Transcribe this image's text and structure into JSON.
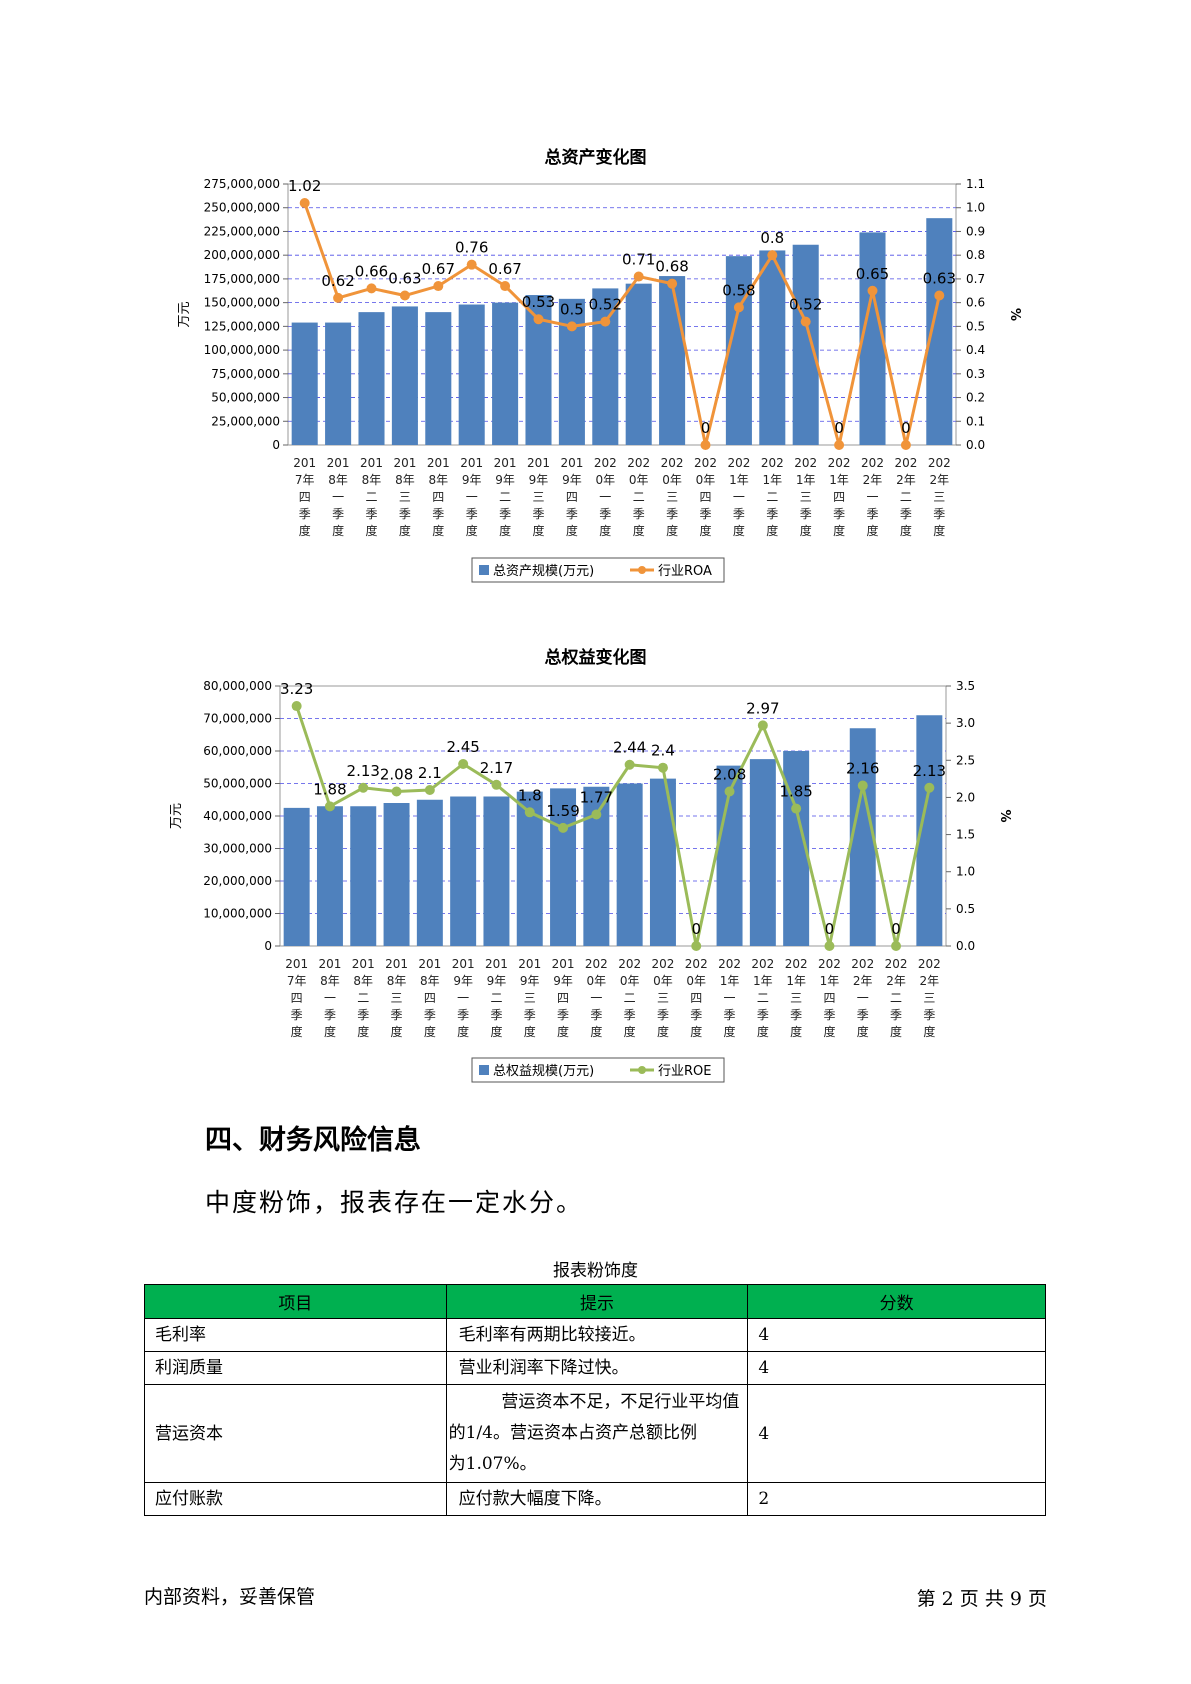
{
  "chart_data": [
    {
      "type": "bar+line",
      "title": "总资产变化图",
      "ylabel": "万元",
      "y2label": "%",
      "ylim": [
        0,
        275000000
      ],
      "y2lim": [
        0,
        1.1
      ],
      "y_ticks": [
        "275,000,000",
        "250,000,000",
        "225,000,000",
        "200,000,000",
        "175,000,000",
        "150,000,000",
        "125,000,000",
        "100,000,000",
        "75,000,000",
        "50,000,000",
        "25,000,000",
        "0"
      ],
      "y2_ticks": [
        "1.1",
        "1.0",
        "0.9",
        "0.8",
        "0.7",
        "0.6",
        "0.5",
        "0.4",
        "0.3",
        "0.2",
        "0.1",
        "0.0"
      ],
      "categories": [
        "2017年四季度",
        "2018年一季度",
        "2018年二季度",
        "2018年三季度",
        "2018年四季度",
        "2019年一季度",
        "2019年二季度",
        "2019年三季度",
        "2019年四季度",
        "2020年一季度",
        "2020年二季度",
        "2020年三季度",
        "2020年四季度",
        "2021年一季度",
        "2021年二季度",
        "2021年三季度",
        "2021年四季度",
        "2022年一季度",
        "2022年二季度",
        "2022年三季度"
      ],
      "series": [
        {
          "name": "总资产规模(万元)",
          "kind": "bar",
          "color": "#4f81bd",
          "values": [
            129000000,
            129000000,
            140000000,
            146000000,
            140000000,
            148000000,
            150000000,
            158000000,
            154000000,
            165000000,
            170000000,
            178000000,
            0,
            199000000,
            205000000,
            211000000,
            0,
            224000000,
            0,
            239000000
          ]
        },
        {
          "name": "行业ROA",
          "kind": "line",
          "color": "#f0943a",
          "values": [
            1.02,
            0.62,
            0.66,
            0.63,
            0.67,
            0.76,
            0.67,
            0.53,
            0.5,
            0.52,
            0.71,
            0.68,
            0,
            0.58,
            0.8,
            0.52,
            0,
            0.65,
            0,
            0.63
          ],
          "labels": [
            "1.02",
            "0.62",
            "0.66",
            "0.63",
            "0.67",
            "0.76",
            "0.67",
            "0.53",
            "0.5",
            "0.52",
            "0.71",
            "0.68",
            "0",
            "0.58",
            "0.8",
            "0.52",
            "0",
            "0.65",
            "0",
            "0.63"
          ]
        }
      ],
      "legend": "bottom"
    },
    {
      "type": "bar+line",
      "title": "总权益变化图",
      "ylabel": "万元",
      "y2label": "%",
      "ylim": [
        0,
        80000000
      ],
      "y2lim": [
        0,
        3.5
      ],
      "y_ticks": [
        "80,000,000",
        "70,000,000",
        "60,000,000",
        "50,000,000",
        "40,000,000",
        "30,000,000",
        "20,000,000",
        "10,000,000",
        "0"
      ],
      "y2_ticks": [
        "3.5",
        "3.0",
        "2.5",
        "2.0",
        "1.5",
        "1.0",
        "0.5",
        "0.0"
      ],
      "categories": [
        "2017年四季度",
        "2018年一季度",
        "2018年二季度",
        "2018年三季度",
        "2018年四季度",
        "2019年一季度",
        "2019年二季度",
        "2019年三季度",
        "2019年四季度",
        "2020年一季度",
        "2020年二季度",
        "2020年三季度",
        "2020年四季度",
        "2021年一季度",
        "2021年二季度",
        "2021年三季度",
        "2021年四季度",
        "2022年一季度",
        "2022年二季度",
        "2022年三季度"
      ],
      "series": [
        {
          "name": "总权益规模(万元)",
          "kind": "bar",
          "color": "#4f81bd",
          "values": [
            42500000,
            43000000,
            43000000,
            44000000,
            45000000,
            46000000,
            46000000,
            47500000,
            48500000,
            49000000,
            50000000,
            51500000,
            0,
            55500000,
            57500000,
            60000000,
            0,
            67000000,
            0,
            71000000
          ]
        },
        {
          "name": "行业ROE",
          "kind": "line",
          "color": "#9bbb59",
          "values": [
            3.23,
            1.88,
            2.13,
            2.08,
            2.1,
            2.45,
            2.17,
            1.8,
            1.59,
            1.77,
            2.44,
            2.4,
            0,
            2.08,
            2.97,
            1.85,
            0,
            2.16,
            0,
            2.13
          ],
          "labels": [
            "3.23",
            "1.88",
            "2.13",
            "2.08",
            "2.1",
            "2.45",
            "2.17",
            "1.8",
            "1.59",
            "1.77",
            "2.44",
            "2.4",
            "0",
            "2.08",
            "2.97",
            "1.85",
            "0",
            "2.16",
            "0",
            "2.13"
          ]
        }
      ],
      "legend": "bottom"
    }
  ],
  "section": {
    "heading": "四、财务风险信息",
    "summary": "中度粉饰，报表存在一定水分。"
  },
  "table": {
    "caption": "报表粉饰度",
    "headers": [
      "项目",
      "提示",
      "分数"
    ],
    "rows": [
      {
        "item": "毛利率",
        "tip": "毛利率有两期比较接近。",
        "score": "4"
      },
      {
        "item": "利润质量",
        "tip": "营业利润率下降过快。",
        "score": "4"
      },
      {
        "item": "营运资本",
        "tip_lines": [
          "营运资本不足，不足行业平均值",
          "的1/4。营运资本占资产总额比例",
          "为1.07%。"
        ],
        "score": "4"
      },
      {
        "item": "应付账款",
        "tip": "应付款大幅度下降。",
        "score": "2"
      }
    ]
  },
  "footer": {
    "left": "内部资料，妥善保管",
    "right": "第 2 页  共 9 页"
  }
}
